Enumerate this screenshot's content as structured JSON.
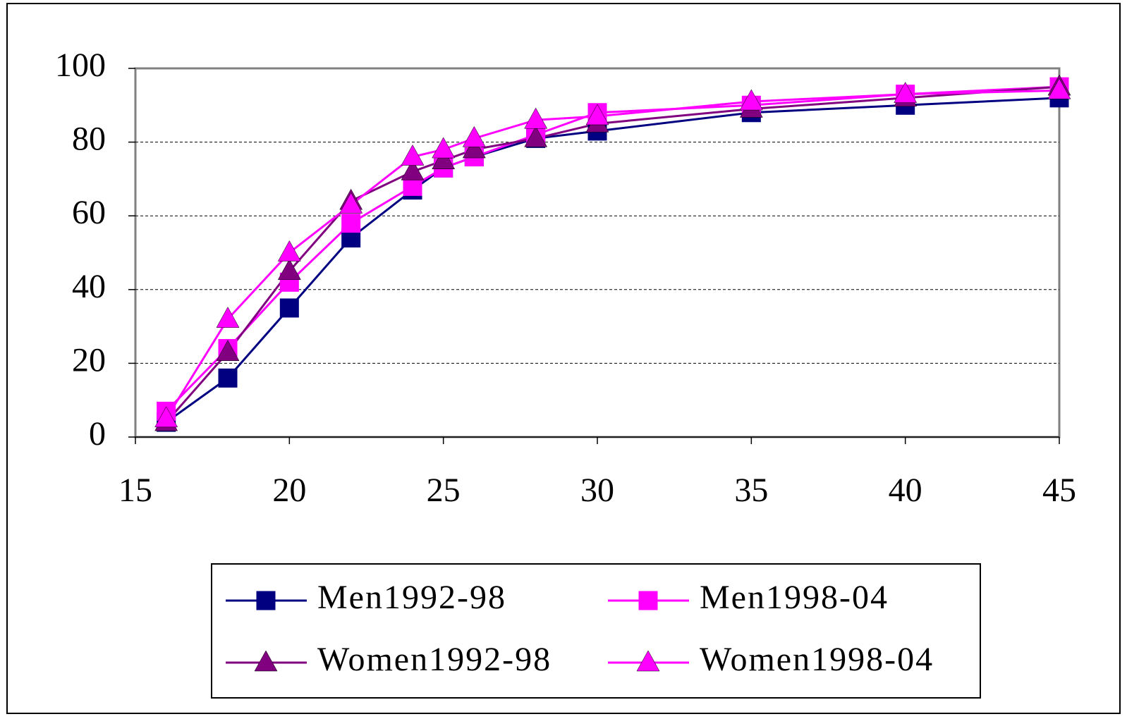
{
  "chart_data": {
    "type": "line",
    "x": [
      16,
      18,
      20,
      22,
      24,
      25,
      26,
      28,
      30,
      35,
      40,
      45
    ],
    "xlim": [
      15,
      45
    ],
    "xticks": [
      15,
      20,
      25,
      30,
      35,
      40,
      45
    ],
    "ylim": [
      0,
      100
    ],
    "yticks": [
      0,
      20,
      40,
      60,
      80,
      100
    ],
    "grid": true,
    "legend": "bottom",
    "series": [
      {
        "name": "Men1992-98",
        "color": "#000080",
        "marker": "square",
        "values": [
          4,
          16,
          35,
          54,
          67,
          73,
          76,
          81,
          83,
          88,
          90,
          92
        ]
      },
      {
        "name": "Men1998-04",
        "color": "#FF00FF",
        "marker": "square",
        "values": [
          7,
          24,
          42,
          58,
          68,
          73,
          76,
          82,
          88,
          90,
          93,
          95
        ]
      },
      {
        "name": "Women1992-98",
        "color": "#800080",
        "marker": "triangle",
        "values": [
          4,
          23,
          45,
          64,
          72,
          75,
          78,
          81,
          85,
          89,
          92,
          95
        ]
      },
      {
        "name": "Women1998-04",
        "color": "#FF00FF",
        "marker": "triangle",
        "values": [
          5,
          32,
          50,
          63,
          76,
          78,
          81,
          86,
          87,
          91,
          93,
          94
        ]
      }
    ]
  }
}
